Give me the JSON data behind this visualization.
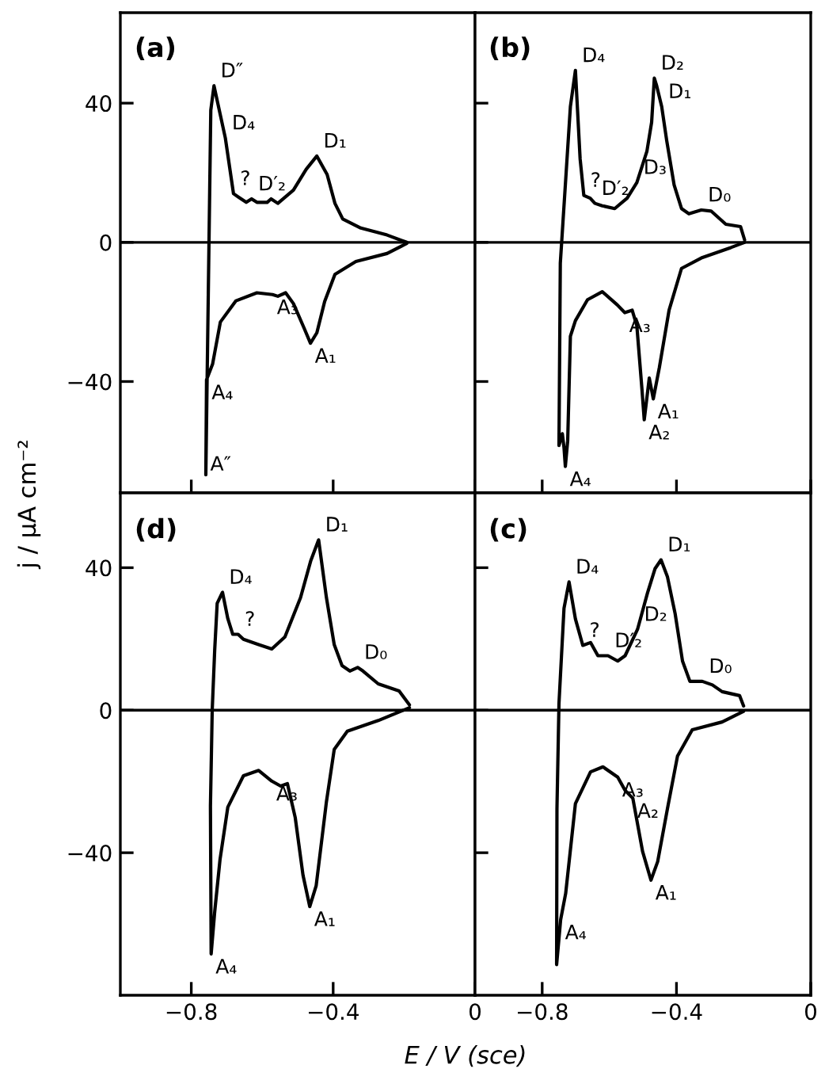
{
  "chart_data": [
    {
      "type": "line",
      "title": "(a)",
      "ylabel": "j / μA cm⁻²",
      "xlim": [
        -1.0,
        0
      ],
      "ylim": [
        -72,
        66
      ],
      "tick_labels": "y",
      "xticks": [
        -0.8,
        -0.4,
        0
      ],
      "yticks": [
        {
          "value": -40,
          "label": "−40"
        },
        0,
        40
      ],
      "ref_lines": [
        {
          "axis": "y",
          "value": 0,
          "color": "#000000"
        }
      ],
      "series": [
        {
          "color": "#000000",
          "x": [
            -0.1925,
            -0.248,
            -0.322,
            -0.373,
            -0.395,
            -0.417,
            -0.446,
            -0.476,
            -0.512,
            -0.556,
            -0.575,
            -0.586,
            -0.615,
            -0.63,
            -0.645,
            -0.667,
            -0.681,
            -0.704,
            -0.736,
            -0.745,
            -0.759,
            -0.757,
            -0.74,
            -0.718,
            -0.674,
            -0.615,
            -0.571,
            -0.556,
            -0.534,
            -0.512,
            -0.483,
            -0.464,
            -0.446,
            -0.424,
            -0.395,
            -0.336,
            -0.248,
            -0.1925
          ],
          "values": [
            0,
            2.1,
            4.1,
            6.7,
            11.2,
            19.5,
            24.8,
            21,
            15,
            11.2,
            12.5,
            11.5,
            11.5,
            12.5,
            11.5,
            13,
            14,
            30,
            45,
            38,
            -66.8,
            -39.5,
            -35,
            -22.9,
            -16.8,
            -14.5,
            -15,
            -15.5,
            -14.5,
            -17.6,
            -24.4,
            -29,
            -26,
            -17,
            -9.2,
            -5.5,
            -3.2,
            -0.3
          ]
        }
      ],
      "annotations": [
        {
          "text": "D″",
          "x": -0.736,
          "y": 45
        },
        {
          "text": "D₄",
          "x": -0.704,
          "y": 30
        },
        {
          "text": "?",
          "x": -0.681,
          "y": 14
        },
        {
          "text": "D′₂",
          "x": -0.63,
          "y": 12.5
        },
        {
          "text": "D₁",
          "x": -0.446,
          "y": 24.8
        },
        {
          "text": "A₃",
          "x": -0.571,
          "y": -15
        },
        {
          "text": "A₁",
          "x": -0.464,
          "y": -29
        },
        {
          "text": "A₄",
          "x": -0.755,
          "y": -39.5
        },
        {
          "text": "A″",
          "x": -0.759,
          "y": -60
        }
      ]
    },
    {
      "type": "line",
      "title": "(b)",
      "xlim": [
        -1.0,
        0
      ],
      "ylim": [
        -72,
        66
      ],
      "tick_labels": false,
      "xticks": [
        -0.8,
        -0.4,
        0
      ],
      "yticks": [
        -40,
        0,
        40
      ],
      "ref_lines": [
        {
          "axis": "y",
          "value": 0,
          "color": "#000000"
        }
      ],
      "series": [
        {
          "color": "#000000",
          "x": [
            -0.197,
            -0.209,
            -0.253,
            -0.297,
            -0.326,
            -0.363,
            -0.385,
            -0.407,
            -0.429,
            -0.444,
            -0.459,
            -0.466,
            -0.474,
            -0.488,
            -0.518,
            -0.547,
            -0.584,
            -0.621,
            -0.643,
            -0.657,
            -0.676,
            -0.687,
            -0.701,
            -0.716,
            -0.738,
            -0.746,
            -0.75,
            -0.74,
            -0.735,
            -0.731,
            -0.724,
            -0.716,
            -0.701,
            -0.665,
            -0.621,
            -0.576,
            -0.554,
            -0.532,
            -0.518,
            -0.503,
            -0.496,
            -0.481,
            -0.469,
            -0.451,
            -0.422,
            -0.385,
            -0.326,
            -0.238,
            -0.197
          ],
          "values": [
            0.7,
            4.5,
            5.2,
            9.0,
            9.3,
            8.2,
            9.7,
            16.5,
            29.2,
            39,
            45,
            47.2,
            34.5,
            26.2,
            17.2,
            12.7,
            9.7,
            10.5,
            11.2,
            12.7,
            13.5,
            24,
            49.4,
            39,
            6,
            -6,
            -58.4,
            -55,
            -59,
            -64.4,
            -57,
            -27,
            -22.5,
            -16.5,
            -14.2,
            -18,
            -20.2,
            -19.5,
            -24,
            -42,
            -51,
            -39,
            -45,
            -36,
            -19.5,
            -7.5,
            -4.5,
            -1.5,
            0
          ]
        }
      ],
      "annotations": [
        {
          "text": "D₄",
          "x": -0.701,
          "y": 49.4
        },
        {
          "text": "D₂",
          "x": -0.466,
          "y": 47.2
        },
        {
          "text": "D₁",
          "x": -0.444,
          "y": 39
        },
        {
          "text": "D₃",
          "x": -0.518,
          "y": 17.2
        },
        {
          "text": "?",
          "x": -0.676,
          "y": 13.5
        },
        {
          "text": "D′₂",
          "x": -0.643,
          "y": 11.2
        },
        {
          "text": "D₀",
          "x": -0.326,
          "y": 9.3
        },
        {
          "text": "A₃",
          "x": -0.554,
          "y": -20.2
        },
        {
          "text": "A₁",
          "x": -0.469,
          "y": -45
        },
        {
          "text": "A₂",
          "x": -0.496,
          "y": -51
        },
        {
          "text": "A₄",
          "x": -0.731,
          "y": -64.4
        }
      ]
    },
    {
      "type": "line",
      "title": "(d)",
      "xlabel": "E / V (sce)",
      "xlim": [
        -1.0,
        0
      ],
      "ylim": [
        -80,
        61
      ],
      "xticks": [
        {
          "value": -0.8,
          "label": "−0.8"
        },
        {
          "value": -0.4,
          "label": "−0.4"
        },
        {
          "value": 0,
          "label": "0"
        }
      ],
      "yticks": [
        {
          "value": -40,
          "label": "−40"
        },
        0,
        40
      ],
      "ref_lines": [
        {
          "axis": "y",
          "value": 0,
          "color": "#000000"
        }
      ],
      "series": [
        {
          "color": "#000000",
          "x": [
            -0.185,
            -0.214,
            -0.273,
            -0.316,
            -0.331,
            -0.353,
            -0.375,
            -0.397,
            -0.419,
            -0.441,
            -0.463,
            -0.492,
            -0.536,
            -0.573,
            -0.61,
            -0.653,
            -0.668,
            -0.683,
            -0.697,
            -0.712,
            -0.727,
            -0.734,
            -0.741,
            -0.746,
            -0.744,
            -0.734,
            -0.719,
            -0.697,
            -0.653,
            -0.61,
            -0.573,
            -0.548,
            -0.529,
            -0.507,
            -0.485,
            -0.466,
            -0.448,
            -0.419,
            -0.397,
            -0.36,
            -0.273,
            -0.185
          ],
          "values": [
            1.5,
            5.4,
            7.4,
            11,
            12,
            11,
            12.5,
            18.4,
            31.6,
            47.8,
            42,
            31.6,
            20.6,
            17.2,
            18.4,
            19.9,
            21.3,
            21.3,
            25.7,
            33.1,
            30,
            16.9,
            0,
            -27,
            -68.4,
            -56.6,
            -41.9,
            -27.2,
            -18.4,
            -16.9,
            -19.9,
            -21.3,
            -20.6,
            -30.1,
            -46.3,
            -55.1,
            -49.3,
            -25.7,
            -11,
            -5.9,
            -2.9,
            0.7
          ]
        }
      ],
      "annotations": [
        {
          "text": "D₄",
          "x": -0.712,
          "y": 33.1
        },
        {
          "text": "?",
          "x": -0.668,
          "y": 21.3
        },
        {
          "text": "D₁",
          "x": -0.441,
          "y": 47.8
        },
        {
          "text": "D₀",
          "x": -0.331,
          "y": 12
        },
        {
          "text": "A₃",
          "x": -0.573,
          "y": -19.9
        },
        {
          "text": "A₁",
          "x": -0.466,
          "y": -55.1
        },
        {
          "text": "A₄",
          "x": -0.744,
          "y": -68.4
        }
      ]
    },
    {
      "type": "line",
      "title": "(c)",
      "xlim": [
        -1.0,
        0
      ],
      "ylim": [
        -80,
        61
      ],
      "tick_labels": "x",
      "xticks": [
        {
          "value": -0.8,
          "label": "−0.8"
        },
        {
          "value": -0.4,
          "label": "−0.4"
        },
        {
          "value": 0,
          "label": "0"
        }
      ],
      "yticks": [
        -40,
        0,
        40
      ],
      "ref_lines": [
        {
          "axis": "y",
          "value": 0,
          "color": "#000000"
        }
      ],
      "series": [
        {
          "color": "#000000",
          "x": [
            -0.2,
            -0.212,
            -0.264,
            -0.293,
            -0.323,
            -0.36,
            -0.382,
            -0.404,
            -0.427,
            -0.446,
            -0.464,
            -0.486,
            -0.516,
            -0.553,
            -0.575,
            -0.604,
            -0.634,
            -0.656,
            -0.679,
            -0.701,
            -0.72,
            -0.735,
            -0.75,
            -0.756,
            -0.757,
            -0.745,
            -0.73,
            -0.701,
            -0.656,
            -0.619,
            -0.575,
            -0.553,
            -0.53,
            -0.501,
            -0.476,
            -0.456,
            -0.427,
            -0.397,
            -0.353,
            -0.264,
            -0.2
          ],
          "values": [
            1.2,
            4.1,
            5.2,
            7.1,
            8.1,
            8.1,
            13.8,
            27.1,
            37.5,
            42.2,
            39.7,
            33,
            22.7,
            15.3,
            13.8,
            15.3,
            15.3,
            19,
            18.2,
            25.6,
            36,
            28.6,
            1.9,
            -27.7,
            -71.4,
            -58.8,
            -51.4,
            -26.2,
            -17.3,
            -15.9,
            -18.8,
            -22.5,
            -24.7,
            -39.6,
            -47.7,
            -42.5,
            -27.7,
            -12.9,
            -5.5,
            -3.3,
            -0.3
          ]
        }
      ],
      "annotations": [
        {
          "text": "D₄",
          "x": -0.72,
          "y": 36
        },
        {
          "text": "?",
          "x": -0.679,
          "y": 18.2
        },
        {
          "text": "D′₂",
          "x": -0.604,
          "y": 15.3
        },
        {
          "text": "D₂",
          "x": -0.516,
          "y": 22.7
        },
        {
          "text": "D₁",
          "x": -0.446,
          "y": 42.2
        },
        {
          "text": "D₀",
          "x": -0.323,
          "y": 8.1
        },
        {
          "text": "A₃",
          "x": -0.575,
          "y": -18.8
        },
        {
          "text": "A₂",
          "x": -0.53,
          "y": -24.7
        },
        {
          "text": "A₁",
          "x": -0.476,
          "y": -47.7
        },
        {
          "text": "A₄",
          "x": -0.745,
          "y": -58.8
        }
      ]
    }
  ]
}
